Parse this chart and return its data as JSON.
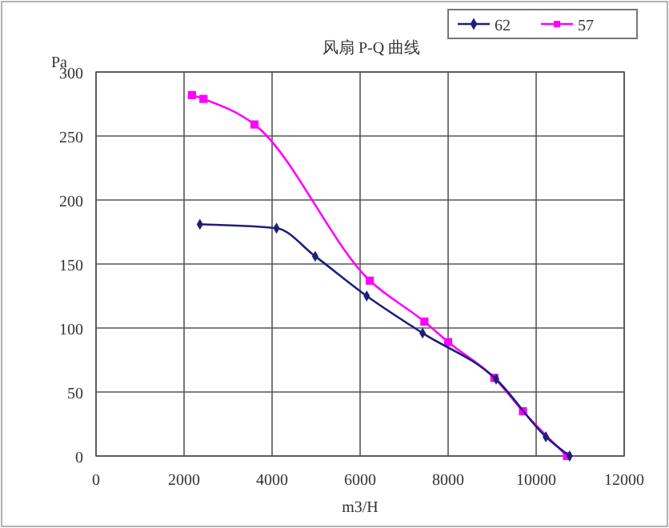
{
  "chart_data": {
    "type": "line",
    "title": "风扇 P-Q 曲线",
    "xlabel": "m3/H",
    "ylabel": "Pa",
    "xlim": [
      0,
      12000
    ],
    "xticks": [
      0,
      2000,
      4000,
      6000,
      8000,
      10000,
      12000
    ],
    "ylim": [
      0,
      300
    ],
    "yticks": [
      0,
      50,
      100,
      150,
      200,
      250,
      300
    ],
    "grid": true,
    "legend": "top right",
    "series": [
      {
        "name": "62",
        "color": "#1f1f7a",
        "marker": "diamond",
        "x": [
          2360,
          4100,
          4980,
          6150,
          7420,
          9090,
          10220,
          10760
        ],
        "values": [
          181,
          178,
          156,
          125,
          96,
          60,
          15,
          0
        ]
      },
      {
        "name": "57",
        "color": "#ff00ff",
        "marker": "square",
        "x": [
          2180,
          2440,
          3600,
          6220,
          7460,
          8000,
          9050,
          9700,
          10700
        ],
        "values": [
          282,
          279,
          259,
          137,
          105,
          89,
          61,
          35,
          0
        ]
      }
    ]
  }
}
